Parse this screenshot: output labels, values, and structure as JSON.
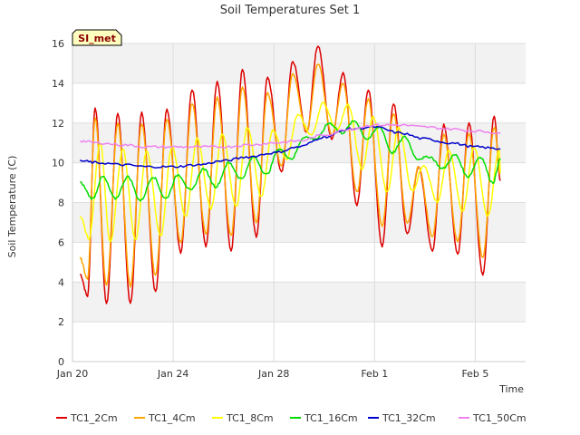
{
  "chart_data": {
    "type": "line",
    "title": "Soil Temperatures Set 1",
    "xlabel": "Time",
    "ylabel": "Soil Temperature (C)",
    "badge": "SI_met",
    "ylim": [
      0,
      16
    ],
    "xlim": [
      0,
      18
    ],
    "yticks": [
      0,
      2,
      4,
      6,
      8,
      10,
      12,
      14,
      16
    ],
    "xticks": [
      {
        "value": 0,
        "label": "Jan 20"
      },
      {
        "value": 4,
        "label": "Jan 24"
      },
      {
        "value": 8,
        "label": "Jan 28"
      },
      {
        "value": 12,
        "label": "Feb 1"
      },
      {
        "value": 16,
        "label": "Feb 5"
      }
    ],
    "x_unit": "days since Jan 20",
    "legend_position": "bottom",
    "grid": true,
    "series": [
      {
        "name": "TC1_2Cm",
        "color": "#dd0000",
        "x": [
          0.3,
          0.6,
          0.9,
          1.35,
          1.8,
          2.3,
          2.75,
          3.3,
          3.75,
          4.3,
          4.75,
          5.3,
          5.75,
          6.3,
          6.75,
          7.3,
          7.75,
          8.3,
          8.75,
          9.3,
          9.75,
          10.3,
          10.75,
          11.3,
          11.75,
          12.3,
          12.75,
          13.3,
          13.75,
          14.3,
          14.75,
          15.3,
          15.75,
          16.3,
          16.75,
          17.0
        ],
        "y": [
          4.4,
          3.3,
          12.8,
          2.9,
          12.5,
          2.9,
          12.5,
          3.5,
          12.7,
          5.5,
          13.7,
          5.8,
          14.1,
          5.6,
          14.7,
          6.3,
          14.3,
          9.5,
          15.1,
          11.5,
          15.9,
          11.2,
          14.5,
          7.9,
          13.7,
          5.8,
          13.0,
          6.4,
          9.8,
          5.6,
          11.9,
          5.4,
          12.0,
          4.4,
          12.3,
          9.1
        ]
      },
      {
        "name": "TC1_4Cm",
        "color": "#ffa500",
        "x": [
          0.3,
          0.6,
          0.9,
          1.35,
          1.8,
          2.3,
          2.75,
          3.3,
          3.75,
          4.3,
          4.75,
          5.3,
          5.75,
          6.3,
          6.75,
          7.3,
          7.75,
          8.3,
          8.75,
          9.3,
          9.75,
          10.3,
          10.75,
          11.3,
          11.75,
          12.3,
          12.75,
          13.3,
          13.75,
          14.3,
          14.75,
          15.3,
          15.75,
          16.3,
          16.75,
          17.0
        ],
        "y": [
          5.2,
          4.2,
          12.3,
          3.8,
          12.0,
          3.8,
          12.0,
          4.3,
          12.2,
          6.0,
          13.0,
          6.4,
          13.3,
          6.3,
          13.8,
          7.0,
          13.5,
          9.8,
          14.5,
          11.6,
          15.0,
          11.4,
          14.0,
          8.5,
          13.2,
          6.8,
          12.5,
          7.0,
          9.8,
          6.3,
          11.4,
          6.0,
          11.5,
          5.2,
          11.8,
          9.4
        ]
      },
      {
        "name": "TC1_8Cm",
        "color": "#ffff00",
        "x": [
          0.3,
          0.65,
          1.1,
          1.5,
          2.0,
          2.5,
          2.95,
          3.5,
          3.95,
          4.5,
          4.95,
          5.5,
          5.95,
          6.5,
          6.95,
          7.5,
          7.95,
          8.5,
          8.95,
          9.5,
          9.95,
          10.5,
          10.95,
          11.5,
          11.95,
          12.5,
          12.95,
          13.5,
          13.95,
          14.5,
          14.95,
          15.5,
          15.95,
          16.5,
          16.95,
          17.0
        ],
        "y": [
          7.3,
          6.2,
          11.0,
          6.0,
          10.7,
          6.1,
          10.6,
          6.3,
          10.8,
          7.3,
          11.2,
          7.7,
          11.4,
          7.8,
          11.8,
          8.3,
          11.6,
          10.2,
          12.4,
          11.4,
          13.0,
          11.7,
          12.9,
          9.7,
          12.3,
          8.5,
          11.8,
          8.6,
          9.9,
          8.0,
          10.6,
          7.6,
          10.8,
          7.3,
          10.6,
          9.5
        ]
      },
      {
        "name": "TC1_16Cm",
        "color": "#00dd00",
        "x": [
          0.3,
          0.8,
          1.2,
          1.7,
          2.2,
          2.7,
          3.2,
          3.7,
          4.2,
          4.7,
          5.2,
          5.7,
          6.2,
          6.7,
          7.2,
          7.7,
          8.2,
          8.7,
          9.2,
          9.7,
          10.2,
          10.7,
          11.2,
          11.7,
          12.2,
          12.7,
          13.2,
          13.7,
          14.2,
          14.7,
          15.2,
          15.7,
          16.2,
          16.7,
          17.0
        ],
        "y": [
          9.0,
          8.2,
          9.3,
          8.2,
          9.3,
          8.1,
          9.3,
          8.2,
          9.4,
          8.6,
          9.7,
          8.8,
          10.0,
          9.2,
          10.3,
          9.4,
          10.7,
          10.2,
          11.3,
          11.2,
          12.0,
          11.5,
          12.1,
          11.2,
          11.8,
          10.5,
          11.3,
          10.2,
          10.3,
          9.7,
          10.4,
          9.3,
          10.3,
          9.0,
          10.2
        ]
      },
      {
        "name": "TC1_32Cm",
        "color": "#0000cc",
        "x": [
          0.3,
          1.0,
          2.0,
          3.0,
          4.0,
          5.0,
          6.0,
          7.0,
          8.0,
          9.0,
          10.0,
          11.0,
          12.0,
          13.0,
          14.0,
          15.0,
          16.0,
          17.0
        ],
        "y": [
          10.1,
          10.0,
          9.9,
          9.8,
          9.8,
          9.9,
          10.1,
          10.3,
          10.5,
          10.8,
          11.3,
          11.7,
          11.8,
          11.5,
          11.2,
          11.0,
          10.8,
          10.7
        ]
      },
      {
        "name": "TC1_50Cm",
        "color": "#ee82ee",
        "x": [
          0.3,
          1.0,
          2.0,
          3.0,
          4.0,
          5.0,
          6.0,
          7.0,
          8.0,
          9.0,
          10.0,
          11.0,
          12.0,
          13.0,
          14.0,
          15.0,
          16.0,
          17.0
        ],
        "y": [
          11.1,
          11.0,
          10.9,
          10.8,
          10.8,
          10.8,
          10.8,
          10.9,
          11.0,
          11.1,
          11.4,
          11.7,
          11.9,
          11.9,
          11.8,
          11.7,
          11.6,
          11.5
        ]
      }
    ]
  }
}
